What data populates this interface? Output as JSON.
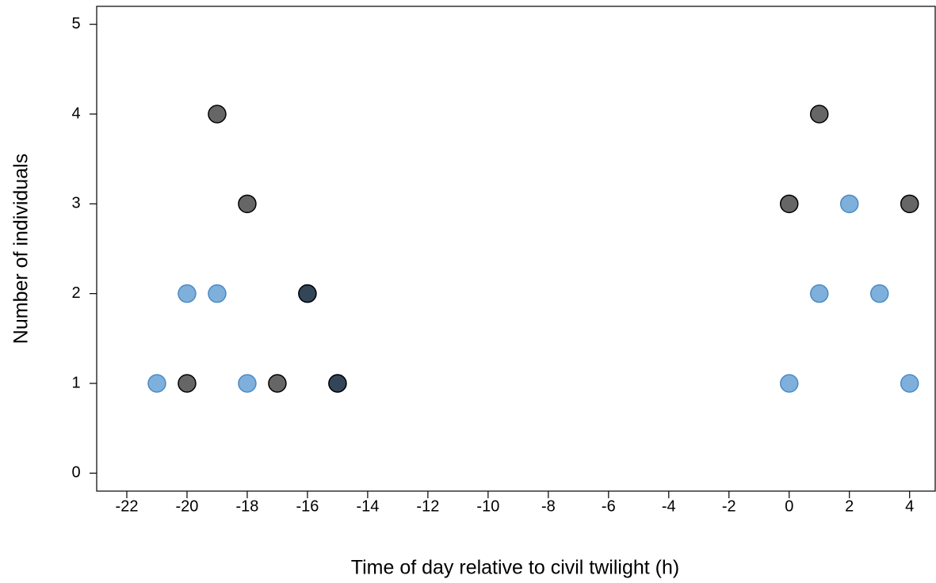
{
  "chart_data": {
    "type": "scatter",
    "x_label": "Time of day relative to civil twilight (h)",
    "y_label": "Number of individuals",
    "xlim": [
      -23,
      4.85
    ],
    "ylim": [
      -0.2,
      5.2
    ],
    "xticks": [
      -22,
      -20,
      -18,
      -16,
      -14,
      -12,
      -10,
      -8,
      -6,
      -4,
      -2,
      0,
      2,
      4
    ],
    "yticks": [
      0,
      1,
      2,
      3,
      4,
      5
    ],
    "series": [
      {
        "color": "#7fb0dc",
        "x": [
          -21,
          -20,
          -19,
          -18,
          -16,
          -15,
          2,
          1,
          3,
          0,
          4
        ],
        "values": [
          1,
          2,
          2,
          1,
          2,
          1,
          3,
          2,
          2,
          1,
          1
        ]
      },
      {
        "color": "#000000",
        "x": [
          -19,
          -18,
          -20,
          -17,
          -16,
          -15,
          1,
          0,
          4
        ],
        "values": [
          4,
          3,
          1,
          1,
          2,
          1,
          4,
          3,
          3
        ]
      }
    ]
  }
}
